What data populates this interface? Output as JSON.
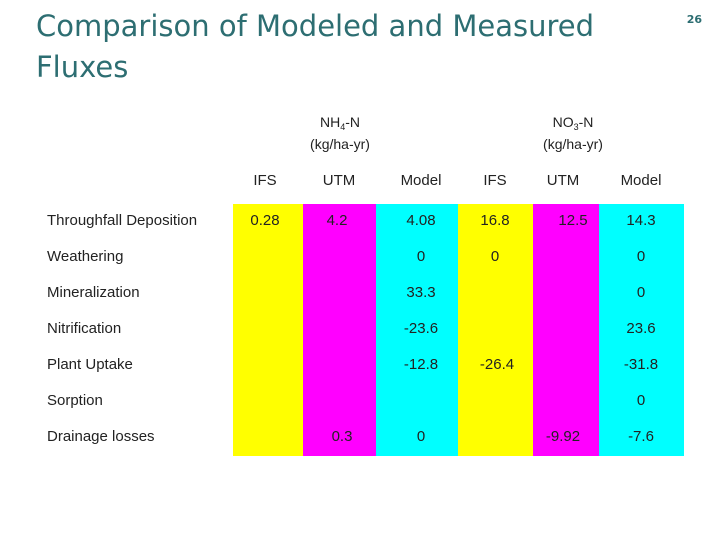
{
  "title": "Comparison of Modeled and Measured Fluxes",
  "slide_number": "26",
  "groups": {
    "nh4": {
      "species": "NH",
      "sub": "4",
      "suffix": "-N",
      "unit": "(kg/ha-yr)"
    },
    "no3": {
      "species": "NO",
      "sub": "3",
      "suffix": "-N",
      "unit": "(kg/ha-yr)"
    }
  },
  "columns": [
    "IFS",
    "UTM",
    "Model",
    "IFS",
    "UTM",
    "Model"
  ],
  "colors": {
    "yellow": "#ffff00",
    "magenta": "#ff00ff",
    "cyan": "#00ffff",
    "title": "#2d6e72"
  },
  "rows": [
    {
      "label": "Throughfall Deposition",
      "values": [
        "0.28",
        "4.2",
        "4.08",
        "16.8",
        "12.5",
        "14.3"
      ]
    },
    {
      "label": "Weathering",
      "values": [
        "",
        "",
        "0",
        "0",
        "",
        "0"
      ]
    },
    {
      "label": "Mineralization",
      "values": [
        "",
        "",
        "33.3",
        "",
        "",
        "0"
      ]
    },
    {
      "label": "Nitrification",
      "values": [
        "",
        "",
        "-23.6",
        "",
        "",
        "23.6"
      ]
    },
    {
      "label": "Plant Uptake",
      "values": [
        "",
        "",
        "-12.8",
        "-26.4",
        "",
        "-31.8"
      ]
    },
    {
      "label": "Sorption",
      "values": [
        "",
        "",
        "",
        "",
        "",
        "0"
      ]
    },
    {
      "label": "Drainage losses",
      "values": [
        "",
        "0.3",
        "0",
        "",
        "-9.92",
        "-7.6"
      ]
    }
  ]
}
